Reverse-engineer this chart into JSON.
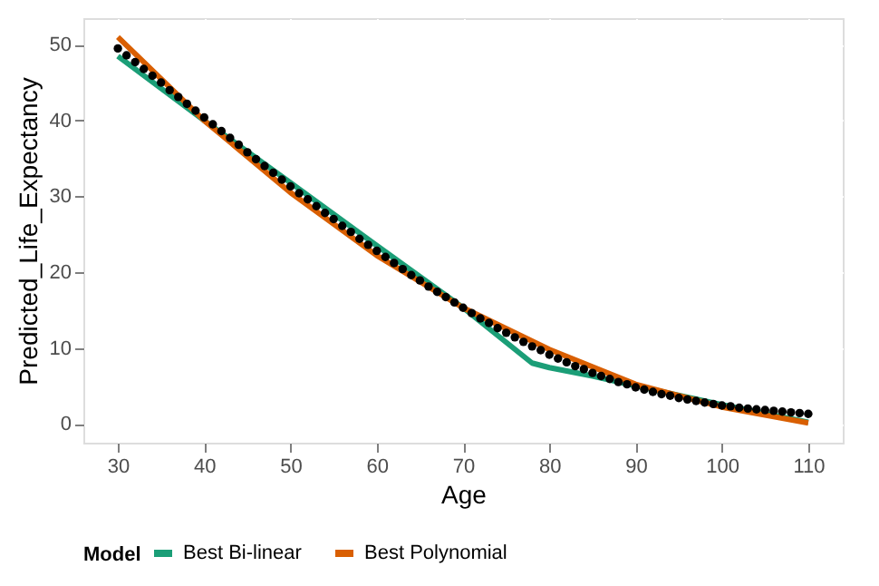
{
  "chart_data": {
    "type": "line",
    "xlabel": "Age",
    "ylabel": "Predicted_Life_Expectancy",
    "legend_title": "Model",
    "legend": "bottom",
    "grid": true,
    "xlim": [
      26,
      114
    ],
    "xticks": [
      30,
      40,
      50,
      60,
      70,
      80,
      90,
      100,
      110
    ],
    "ylim": [
      -2.5,
      53.5
    ],
    "yticks": [
      0,
      10,
      20,
      30,
      40,
      50
    ],
    "series": [
      {
        "type": "scatter",
        "marker": "circle",
        "color": "#000000",
        "x": [
          30,
          31,
          32,
          33,
          34,
          35,
          36,
          37,
          38,
          39,
          40,
          41,
          42,
          43,
          44,
          45,
          46,
          47,
          48,
          49,
          50,
          51,
          52,
          53,
          54,
          55,
          56,
          57,
          58,
          59,
          60,
          61,
          62,
          63,
          64,
          65,
          66,
          67,
          68,
          69,
          70,
          71,
          72,
          73,
          74,
          75,
          76,
          77,
          78,
          79,
          80,
          81,
          82,
          83,
          84,
          85,
          86,
          87,
          88,
          89,
          90,
          91,
          92,
          93,
          94,
          95,
          96,
          97,
          98,
          99,
          100,
          101,
          102,
          103,
          104,
          105,
          106,
          107,
          108,
          109,
          110
        ],
        "values": [
          49.5,
          48.6,
          47.7,
          46.8,
          45.9,
          45.0,
          44.0,
          43.1,
          42.2,
          41.3,
          40.4,
          39.5,
          38.6,
          37.7,
          36.8,
          35.8,
          34.9,
          34.0,
          33.1,
          32.2,
          31.3,
          30.4,
          29.6,
          28.7,
          27.8,
          27.0,
          26.1,
          25.3,
          24.4,
          23.6,
          22.8,
          22.0,
          21.2,
          20.4,
          19.6,
          18.9,
          18.1,
          17.4,
          16.7,
          16.0,
          15.3,
          14.6,
          13.9,
          13.3,
          12.6,
          12.0,
          11.4,
          10.8,
          10.2,
          9.7,
          9.1,
          8.6,
          8.1,
          7.6,
          7.2,
          6.7,
          6.3,
          5.9,
          5.5,
          5.2,
          4.8,
          4.5,
          4.2,
          3.9,
          3.7,
          3.4,
          3.2,
          3.0,
          2.8,
          2.6,
          2.4,
          2.3,
          2.1,
          2.0,
          1.9,
          1.8,
          1.7,
          1.6,
          1.5,
          1.4,
          1.3
        ]
      },
      {
        "name": "Best Bi-linear",
        "color": "#1b9e77",
        "x": [
          30,
          40,
          50,
          60,
          70,
          78,
          80,
          85,
          90,
          100,
          110
        ],
        "values": [
          48.5,
          40.0,
          31.8,
          23.5,
          15.3,
          8.0,
          7.4,
          6.3,
          5.0,
          2.5,
          0.2
        ]
      },
      {
        "name": "Best Polynomial",
        "color": "#d95f02",
        "x": [
          30,
          40,
          50,
          60,
          70,
          80,
          90,
          100,
          110
        ],
        "values": [
          51.0,
          40.0,
          30.5,
          22.2,
          15.3,
          9.8,
          5.2,
          2.2,
          0.1
        ]
      }
    ]
  }
}
